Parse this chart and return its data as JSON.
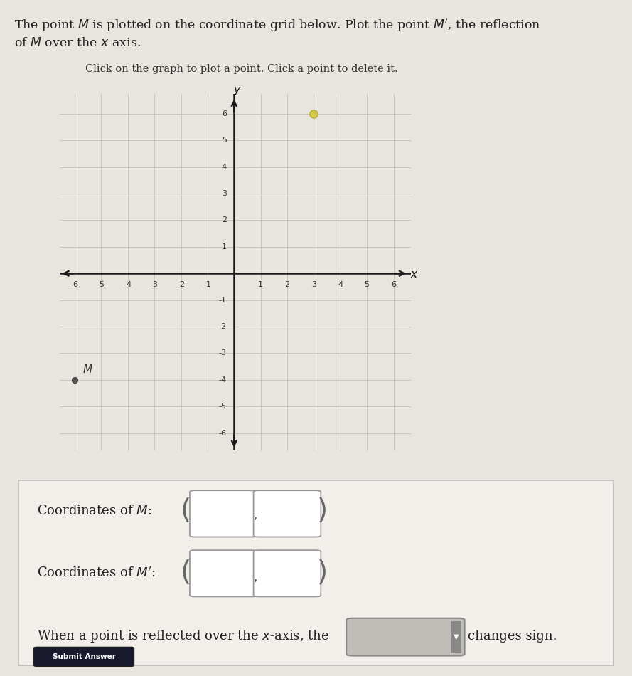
{
  "title_text": "The point $M$ is plotted on the coordinate grid below. Plot the point $M'$, the reflection\nof $M$ over the $x$-axis.",
  "instruction": "Click on the graph to plot a point. Click a point to delete it.",
  "M": [
    -6,
    -4
  ],
  "M_prime": [
    3,
    6
  ],
  "grid_range": [
    -6,
    6
  ],
  "M_color": "#444444",
  "M_prime_color": "#d4c84a",
  "axis_color": "#1a1a1a",
  "grid_color": "#c8c4be",
  "grid_bg": "#eeeae4",
  "tick_fontsize": 8,
  "background_color": "#e8e4de",
  "panel_bg": "#dedad4",
  "panel_border": "#bbbbbb",
  "box_color": "#ffffff",
  "box_edge": "#999999",
  "dropdown_bg": "#c0bdb8",
  "dropdown_edge": "#888888"
}
